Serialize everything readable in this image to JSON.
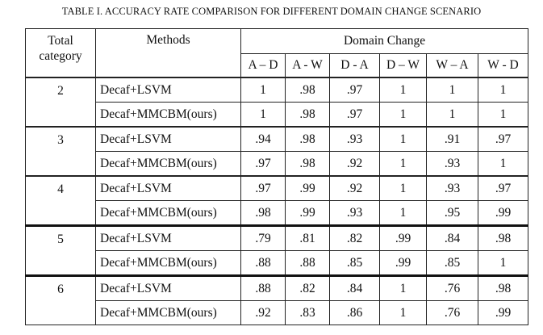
{
  "caption": "TABLE I. ACCURACY RATE COMPARISON FOR DIFFERENT DOMAIN CHANGE SCENARIO",
  "header": {
    "total_category": "Total category",
    "methods": "Methods",
    "domain_change": "Domain Change",
    "scenarios": [
      "A – D",
      "A - W",
      "D - A",
      "D – W",
      "W – A",
      "W - D"
    ]
  },
  "groups": [
    {
      "category": "2",
      "rows": [
        {
          "method": "Decaf+LSVM",
          "values": [
            "1",
            ".98",
            ".97",
            "1",
            "1",
            "1"
          ]
        },
        {
          "method": "Decaf+MMCBM(ours)",
          "values": [
            "1",
            ".98",
            ".97",
            "1",
            "1",
            "1"
          ]
        }
      ]
    },
    {
      "category": "3",
      "rows": [
        {
          "method": "Decaf+LSVM",
          "values": [
            ".94",
            ".98",
            ".93",
            "1",
            ".91",
            ".97"
          ]
        },
        {
          "method": "Decaf+MMCBM(ours)",
          "values": [
            ".97",
            ".98",
            ".92",
            "1",
            ".93",
            "1"
          ]
        }
      ]
    },
    {
      "category": "4",
      "rows": [
        {
          "method": "Decaf+LSVM",
          "values": [
            ".97",
            ".99",
            ".92",
            "1",
            ".93",
            ".97"
          ]
        },
        {
          "method": "Decaf+MMCBM(ours)",
          "values": [
            ".98",
            ".99",
            ".93",
            "1",
            ".95",
            ".99"
          ]
        }
      ]
    },
    {
      "category": "5",
      "rows": [
        {
          "method": "Decaf+LSVM",
          "values": [
            ".79",
            ".81",
            ".82",
            ".99",
            ".84",
            ".98"
          ]
        },
        {
          "method": "Decaf+MMCBM(ours)",
          "values": [
            ".88",
            ".88",
            ".85",
            ".99",
            ".85",
            "1"
          ]
        }
      ]
    },
    {
      "category": "6",
      "rows": [
        {
          "method": "Decaf+LSVM",
          "values": [
            ".88",
            ".82",
            ".84",
            "1",
            ".76",
            ".98"
          ]
        },
        {
          "method": "Decaf+MMCBM(ours)",
          "values": [
            ".92",
            ".83",
            ".86",
            "1",
            ".76",
            ".99"
          ]
        }
      ]
    }
  ]
}
